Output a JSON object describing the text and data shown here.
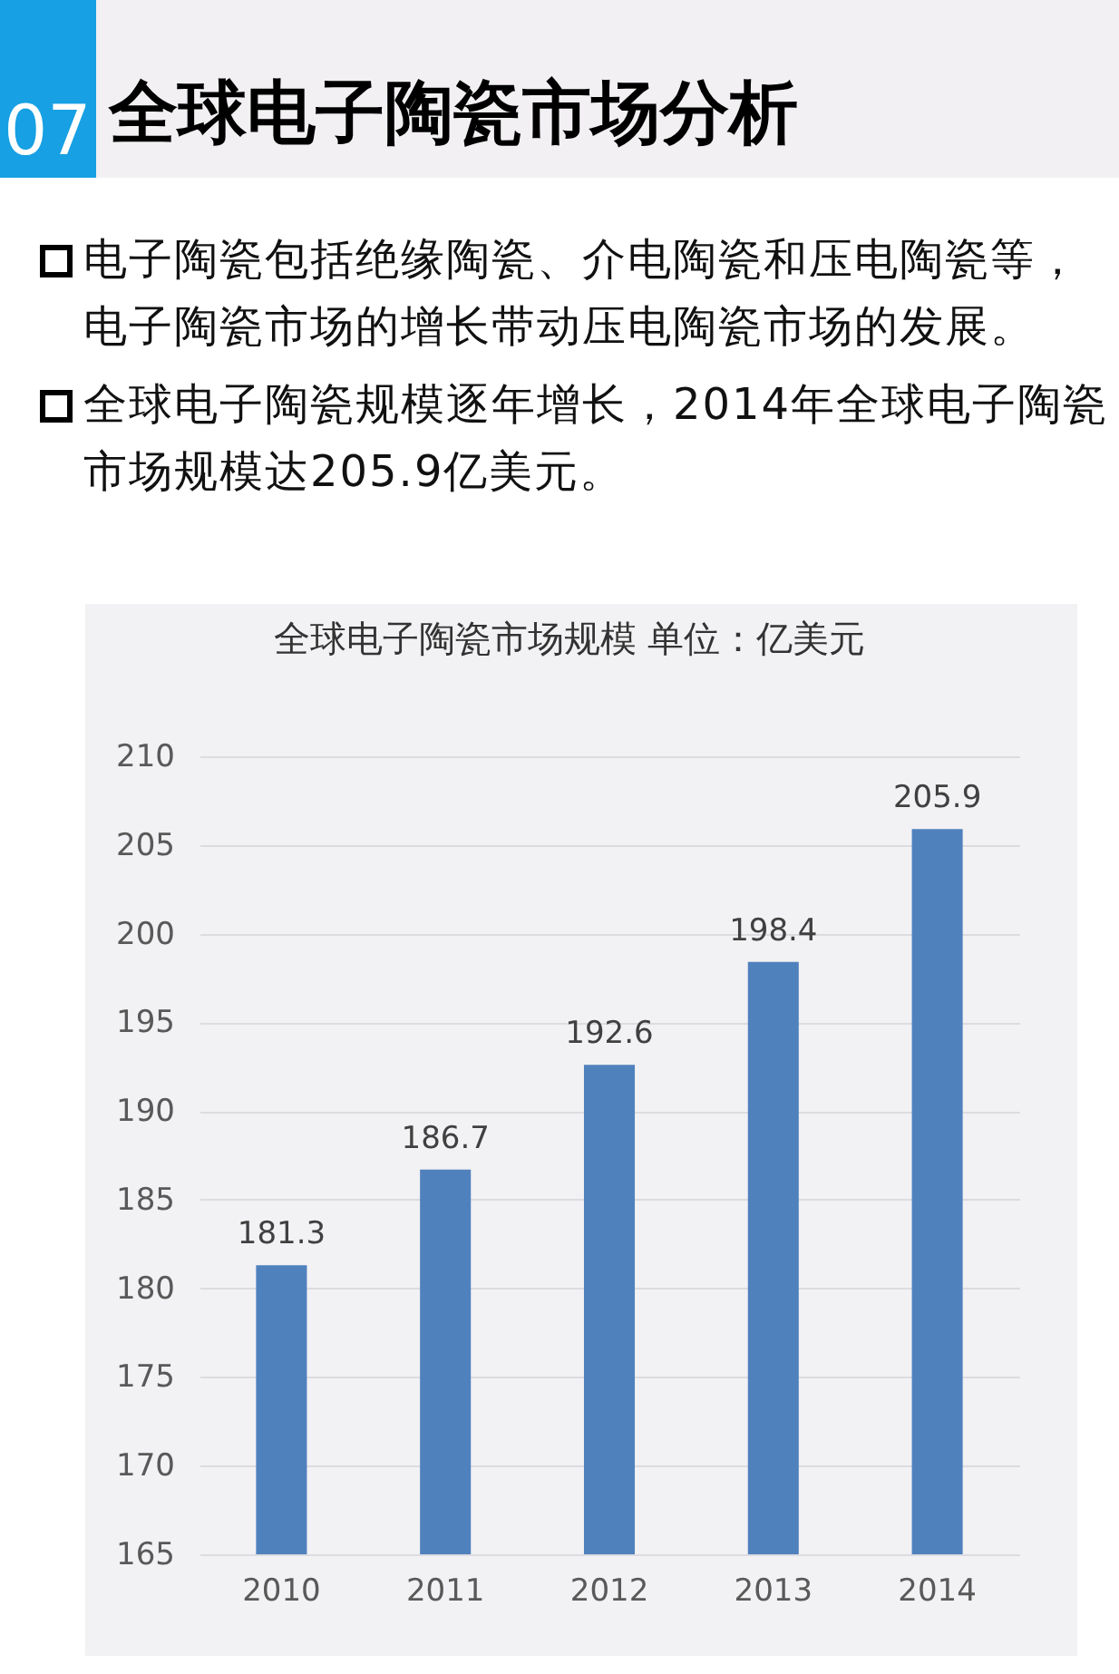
{
  "chart_data": {
    "type": "bar",
    "title": "全球电子陶瓷市场分析",
    "subtitle": "全球电子陶瓷市场规模 单位：亿美元",
    "annotations": [
      "07",
      "电子陶瓷包括绝缘陶瓷、介电陶瓷和压电陶瓷等，电子陶瓷市场的增长带动压电陶瓷市场的发展。",
      "全球电子陶瓷规模逐年增长，2014年全球电子陶瓷市场规模达205.9亿美元。"
    ],
    "categories": [
      "2010",
      "2011",
      "2012",
      "2013",
      "2014"
    ],
    "values": [
      181.3,
      186.7,
      192.6,
      198.4,
      205.9
    ],
    "color": "#4f81bd",
    "ylim": [
      165,
      210
    ],
    "yticks": [
      165,
      170,
      175,
      180,
      185,
      190,
      195,
      200,
      205,
      210
    ],
    "grid": "y",
    "data_labels": true
  }
}
